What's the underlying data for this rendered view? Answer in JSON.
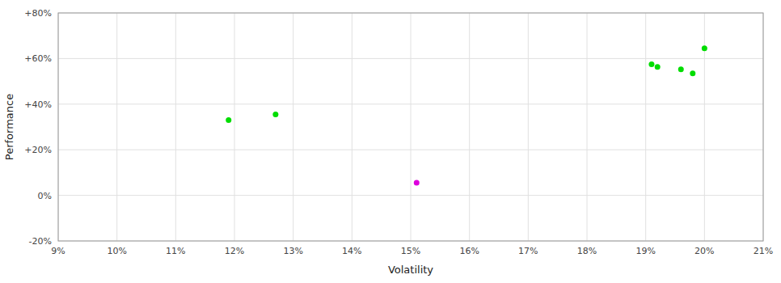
{
  "chart_data": {
    "type": "scatter",
    "xlabel": "Volatility",
    "ylabel": "Performance",
    "xlim": [
      0.09,
      0.21
    ],
    "ylim": [
      -0.2,
      0.8
    ],
    "xticks": [
      {
        "value": 0.09,
        "label": "9%"
      },
      {
        "value": 0.1,
        "label": "10%"
      },
      {
        "value": 0.11,
        "label": "11%"
      },
      {
        "value": 0.12,
        "label": "12%"
      },
      {
        "value": 0.13,
        "label": "13%"
      },
      {
        "value": 0.14,
        "label": "14%"
      },
      {
        "value": 0.15,
        "label": "15%"
      },
      {
        "value": 0.16,
        "label": "16%"
      },
      {
        "value": 0.17,
        "label": "17%"
      },
      {
        "value": 0.18,
        "label": "18%"
      },
      {
        "value": 0.19,
        "label": "19%"
      },
      {
        "value": 0.2,
        "label": "20%"
      },
      {
        "value": 0.21,
        "label": "21%"
      }
    ],
    "yticks": [
      {
        "value": -0.2,
        "label": "-20%"
      },
      {
        "value": 0.0,
        "label": "0%"
      },
      {
        "value": 0.2,
        "label": "+20%"
      },
      {
        "value": 0.4,
        "label": "+40%"
      },
      {
        "value": 0.6,
        "label": "+60%"
      },
      {
        "value": 0.8,
        "label": "+80%"
      }
    ],
    "grid": true,
    "series": [
      {
        "color": "#00dd00",
        "x": [
          0.119,
          0.127,
          0.191,
          0.192,
          0.196,
          0.198,
          0.2
        ],
        "values": [
          0.33,
          0.355,
          0.575,
          0.563,
          0.553,
          0.535,
          0.645
        ]
      },
      {
        "color": "#dd00dd",
        "x": [
          0.151
        ],
        "values": [
          0.055
        ]
      }
    ]
  }
}
